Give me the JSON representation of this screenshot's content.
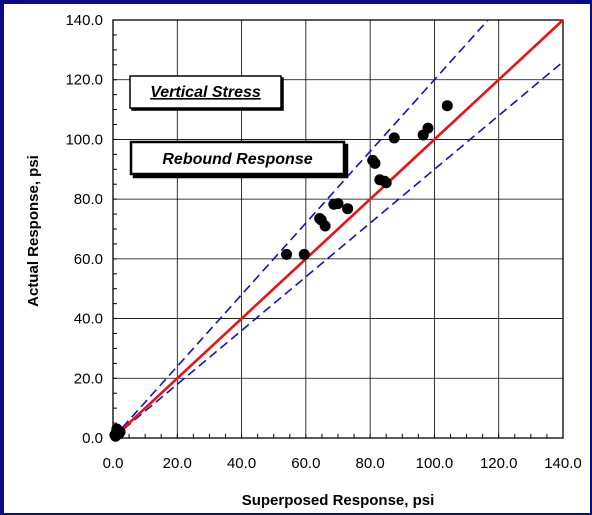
{
  "chart_data": {
    "type": "scatter",
    "xlabel": "Superposed Response, psi",
    "ylabel": "Actual Response, psi",
    "xlim": [
      0,
      140
    ],
    "ylim": [
      0,
      140
    ],
    "xticks": [
      "0.0",
      "20.0",
      "40.0",
      "60.0",
      "80.0",
      "100.0",
      "120.0",
      "140.0"
    ],
    "yticks": [
      "0.0",
      "20.0",
      "40.0",
      "60.0",
      "80.0",
      "100.0",
      "120.0",
      "140.0"
    ],
    "grid": true,
    "annotations": [
      "Vertical Stress",
      "Rebound Response"
    ],
    "colors": {
      "equality": "#ee1111",
      "bounds": "#1111cc",
      "points": "#000000"
    },
    "equality_line": {
      "slope": 1.0
    },
    "bound_lines": [
      {
        "slope": 1.2
      },
      {
        "slope": 0.9
      }
    ],
    "points": [
      {
        "x": 0.6,
        "y": 1.0
      },
      {
        "x": 1.0,
        "y": 1.8
      },
      {
        "x": 1.4,
        "y": 2.6
      },
      {
        "x": 0.8,
        "y": 0.6
      },
      {
        "x": 1.8,
        "y": 1.4
      },
      {
        "x": 2.2,
        "y": 2.0
      },
      {
        "x": 1.2,
        "y": 3.0
      },
      {
        "x": 54.0,
        "y": 61.5
      },
      {
        "x": 59.5,
        "y": 61.5
      },
      {
        "x": 64.3,
        "y": 73.5
      },
      {
        "x": 64.8,
        "y": 73.0
      },
      {
        "x": 66.0,
        "y": 71.0
      },
      {
        "x": 68.7,
        "y": 78.3
      },
      {
        "x": 70.0,
        "y": 78.5
      },
      {
        "x": 73.0,
        "y": 76.8
      },
      {
        "x": 80.8,
        "y": 93.0
      },
      {
        "x": 81.5,
        "y": 92.0
      },
      {
        "x": 83.0,
        "y": 86.5
      },
      {
        "x": 84.5,
        "y": 86.0
      },
      {
        "x": 85.0,
        "y": 85.5
      },
      {
        "x": 87.5,
        "y": 100.5
      },
      {
        "x": 96.5,
        "y": 101.5
      },
      {
        "x": 98.0,
        "y": 103.8
      },
      {
        "x": 104.0,
        "y": 111.3
      }
    ]
  }
}
